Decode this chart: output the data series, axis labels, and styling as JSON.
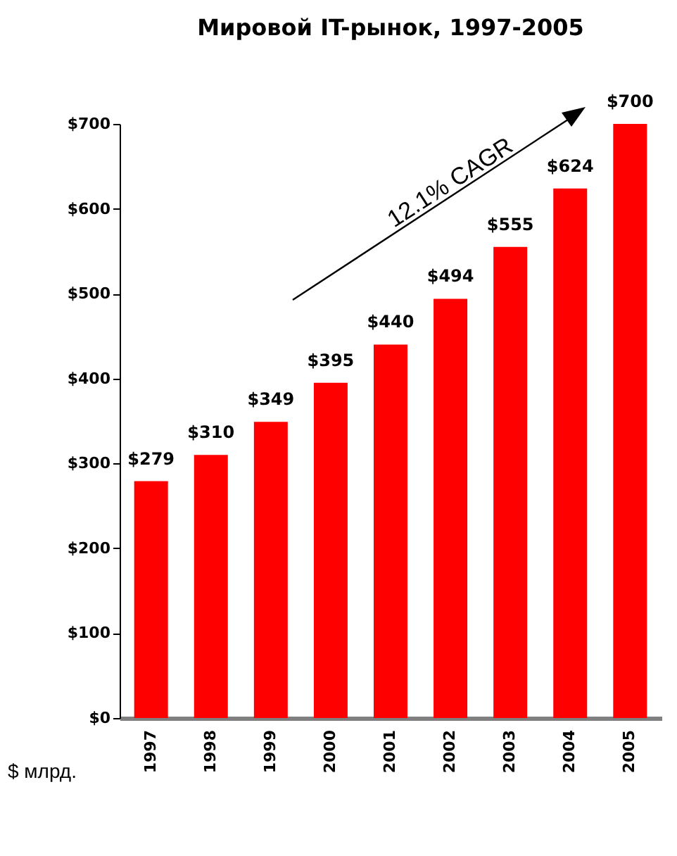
{
  "chart_data": {
    "type": "bar",
    "title": "Мировой  IT-рынок, 1997-2005",
    "ylabel": "$ млрд.",
    "categories": [
      "1997",
      "1998",
      "1999",
      "2000",
      "2001",
      "2002",
      "2003",
      "2004",
      "2005"
    ],
    "values": [
      279,
      310,
      349,
      395,
      440,
      494,
      555,
      624,
      700
    ],
    "value_labels": [
      "$279",
      "$310",
      "$349",
      "$395",
      "$440",
      "$494",
      "$555",
      "$624",
      "$700"
    ],
    "color": "#ff0000",
    "ylim": [
      0,
      700
    ],
    "yticks": [
      {
        "value": 0,
        "label": "$0"
      },
      {
        "value": 100,
        "label": "$100"
      },
      {
        "value": 200,
        "label": "$200"
      },
      {
        "value": 300,
        "label": "$300"
      },
      {
        "value": 400,
        "label": "$400"
      },
      {
        "value": 500,
        "label": "$500"
      },
      {
        "value": 600,
        "label": "$600"
      },
      {
        "value": 700,
        "label": "$700"
      }
    ],
    "annotations": [
      "12.1% CAGR"
    ],
    "grid": false
  }
}
